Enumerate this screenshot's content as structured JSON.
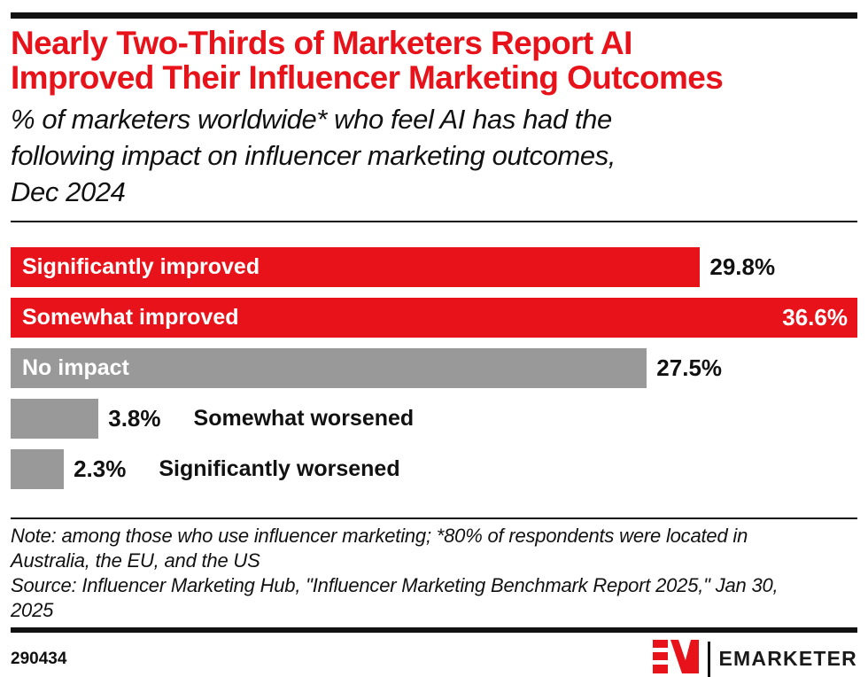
{
  "header": {
    "title_lines": [
      "Nearly Two-Thirds of Marketers Report AI",
      "Improved Their Influencer Marketing Outcomes"
    ],
    "subtitle_lines": [
      "% of marketers worldwide* who feel AI has had the",
      "following impact on influencer marketing outcomes,",
      "Dec 2024"
    ]
  },
  "chart_data": {
    "type": "bar",
    "orientation": "horizontal",
    "title": "Nearly Two-Thirds of Marketers Report AI Improved Their Influencer Marketing Outcomes",
    "subtitle": "% of marketers worldwide* who feel AI has had the following impact on influencer marketing outcomes, Dec 2024",
    "categories": [
      "Significantly improved",
      "Somewhat improved",
      "No impact",
      "Somewhat worsened",
      "Significantly worsened"
    ],
    "values": [
      29.8,
      36.6,
      27.5,
      3.8,
      2.3
    ],
    "value_labels": [
      "29.8%",
      "36.6%",
      "27.5%",
      "3.8%",
      "2.3%"
    ],
    "bar_colors": [
      "#e8121a",
      "#e8121a",
      "#999999",
      "#999999",
      "#999999"
    ],
    "xmax": 36.6,
    "xlim": [
      0,
      36.6
    ],
    "grid": false,
    "legend": false,
    "axis_labels_shown": false
  },
  "colors": {
    "accent_red": "#e8121a",
    "bar_gray": "#999999",
    "rule_black": "#111111"
  },
  "footnote": {
    "note_lines": [
      "Note: among those who use influencer marketing; *80% of respondents were located in",
      "Australia, the EU, and the US"
    ],
    "source_lines": [
      "Source: Influencer Marketing Hub, \"Influencer Marketing Benchmark Report 2025,\" Jan 30,",
      "2025"
    ]
  },
  "footer": {
    "chart_id": "290434",
    "brand": "EMARKETER"
  }
}
